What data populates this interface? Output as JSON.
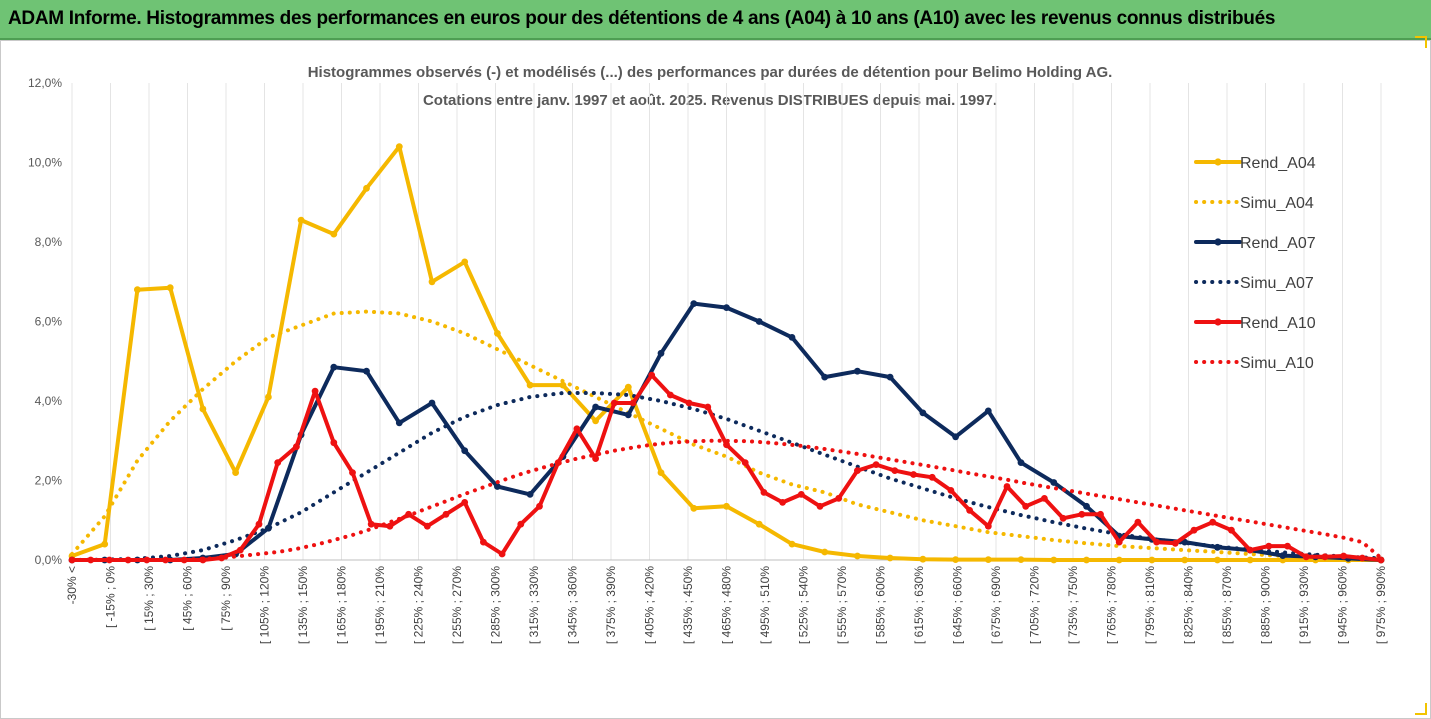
{
  "header": {
    "title": "ADAM Informe. Histogrammes des performances en euros pour des détentions de 4 ans (A04) à 10 ans (A10) avec les revenus connus distribués"
  },
  "colors": {
    "banner": "#6fc374",
    "a04": "#f5b800",
    "a07": "#0d2a5c",
    "a10": "#ee1111"
  },
  "chart_data": {
    "type": "line",
    "title": "Histogrammes observés (-) et modélisés (...) des performances par durées de détention pour Belimo Holding AG.",
    "subtitle": "Cotations entre janv. 1997 et août. 2025. Revenus DISTRIBUES depuis mai. 1997.",
    "xlabel": "",
    "ylabel": "",
    "ylim": [
      0,
      0.12
    ],
    "y_ticks": [
      "0,0%",
      "2,0%",
      "4,0%",
      "6,0%",
      "8,0%",
      "10,0%",
      "12,0%"
    ],
    "grid": "vertical",
    "legend_position": "right",
    "x_tick_labels": [
      "-30% <",
      "[ -15% ; 0%",
      "[ 15% ; 30%",
      "[ 45% ; 60%",
      "[ 75% ; 90%",
      "[ 105% ; 120%",
      "[ 135% ; 150%",
      "[ 165% ; 180%",
      "[ 195% ; 210%",
      "[ 225% ; 240%",
      "[ 255% ; 270%",
      "[ 285% ; 300%",
      "[ 315% ; 330%",
      "[ 345% ; 360%",
      "[ 375% ; 390%",
      "[ 405% ; 420%",
      "[ 435% ; 450%",
      "[ 465% ; 480%",
      "[ 495% ; 510%",
      "[ 525% ; 540%",
      "[ 555% ; 570%",
      "[ 585% ; 600%",
      "[ 615% ; 630%",
      "[ 645% ; 660%",
      "[ 675% ; 690%",
      "[ 705% ; 720%",
      "[ 735% ; 750%",
      "[ 765% ; 780%",
      "[ 795% ; 810%",
      "[ 825% ; 840%",
      "[ 855% ; 870%",
      "[ 885% ; 900%",
      "[ 915% ; 930%",
      "[ 945% ; 960%",
      "[ 975% ; 990%"
    ],
    "series": [
      {
        "name": "Rend_A04",
        "style": "solid",
        "color": "#f5b800",
        "values": [
          0.001,
          0.004,
          0.068,
          0.0685,
          0.038,
          0.022,
          0.041,
          0.0855,
          0.082,
          0.0935,
          0.104,
          0.07,
          0.075,
          0.057,
          0.044,
          0.044,
          0.035,
          0.0435,
          0.022,
          0.013,
          0.0135,
          0.009,
          0.004,
          0.002,
          0.001,
          0.0005,
          0.0002,
          0.0001,
          0.0001,
          0.0001,
          0,
          0,
          0,
          0,
          0,
          0,
          0,
          0,
          0,
          0,
          0
        ]
      },
      {
        "name": "Simu_A04",
        "style": "dotted",
        "color": "#f5b800",
        "values": [
          0.0015,
          0.011,
          0.025,
          0.035,
          0.043,
          0.05,
          0.056,
          0.059,
          0.062,
          0.0625,
          0.062,
          0.06,
          0.057,
          0.053,
          0.049,
          0.045,
          0.041,
          0.037,
          0.033,
          0.029,
          0.026,
          0.022,
          0.019,
          0.017,
          0.014,
          0.012,
          0.01,
          0.0085,
          0.007,
          0.006,
          0.005,
          0.0042,
          0.0035,
          0.003,
          0.0025,
          0.002,
          0.0015,
          0.001,
          0.0008,
          0.0005,
          0.0003
        ]
      },
      {
        "name": "Rend_A07",
        "style": "solid",
        "color": "#0d2a5c",
        "values": [
          0,
          0,
          0,
          0,
          0.0005,
          0.0015,
          0.008,
          0.0315,
          0.0485,
          0.0475,
          0.0345,
          0.0395,
          0.0275,
          0.0185,
          0.0165,
          0.026,
          0.0385,
          0.0365,
          0.052,
          0.0645,
          0.0635,
          0.06,
          0.056,
          0.046,
          0.0475,
          0.046,
          0.037,
          0.031,
          0.0375,
          0.0245,
          0.0195,
          0.0135,
          0.006,
          0.0052,
          0.0045,
          0.0032,
          0.0025,
          0.0011,
          0.0008,
          0.0004,
          0
        ]
      },
      {
        "name": "Simu_A07",
        "style": "dotted",
        "color": "#0d2a5c",
        "values": [
          0,
          0.0001,
          0.0003,
          0.001,
          0.0025,
          0.005,
          0.008,
          0.012,
          0.017,
          0.022,
          0.027,
          0.032,
          0.036,
          0.039,
          0.041,
          0.042,
          0.042,
          0.0415,
          0.04,
          0.038,
          0.0355,
          0.0325,
          0.0295,
          0.0265,
          0.0235,
          0.0205,
          0.018,
          0.0155,
          0.0133,
          0.0113,
          0.0095,
          0.0079,
          0.0065,
          0.0053,
          0.0043,
          0.0034,
          0.0026,
          0.0019,
          0.0013,
          0.0008,
          0.0004
        ]
      },
      {
        "name": "Rend_A10",
        "style": "solid",
        "color": "#ee1111",
        "values": [
          0,
          0,
          0,
          0,
          0,
          0,
          0,
          0,
          0.0005,
          0.0025,
          0.009,
          0.0245,
          0.0285,
          0.0425,
          0.0295,
          0.022,
          0.009,
          0.0085,
          0.0115,
          0.0085,
          0.0115,
          0.0145,
          0.0045,
          0.0015,
          0.009,
          0.0135,
          0.0245,
          0.033,
          0.0255,
          0.0395,
          0.0395,
          0.0465,
          0.0415,
          0.0395,
          0.0385,
          0.029,
          0.0245,
          0.017,
          0.0145,
          0.0165,
          0.0135,
          0.0155,
          0.0225,
          0.024,
          0.0225,
          0.0215,
          0.0208,
          0.0175,
          0.0125,
          0.0085,
          0.0185,
          0.0135,
          0.0155,
          0.0105,
          0.0115,
          0.0115,
          0.0045,
          0.0095,
          0.0045,
          0.0042,
          0.0075,
          0.0095,
          0.0075,
          0.0025,
          0.0035,
          0.0035,
          0.0008,
          0.0008,
          0.001,
          0.0005,
          0
        ]
      },
      {
        "name": "Simu_A10",
        "style": "dotted",
        "color": "#ee1111",
        "values": [
          0,
          0,
          0,
          0,
          0,
          0,
          0.0001,
          0.0003,
          0.0005,
          0.001,
          0.0015,
          0.002,
          0.0028,
          0.0038,
          0.005,
          0.0063,
          0.0078,
          0.0095,
          0.0112,
          0.013,
          0.0148,
          0.0166,
          0.0183,
          0.02,
          0.0216,
          0.023,
          0.0243,
          0.0255,
          0.0265,
          0.0275,
          0.0283,
          0.029,
          0.0295,
          0.0298,
          0.03,
          0.03,
          0.0299,
          0.0296,
          0.0292,
          0.0287,
          0.0281,
          0.0274,
          0.0267,
          0.0259,
          0.0251,
          0.0243,
          0.0235,
          0.0227,
          0.0218,
          0.021,
          0.0202,
          0.0193,
          0.0185,
          0.0177,
          0.0169,
          0.0161,
          0.0153,
          0.0145,
          0.0137,
          0.0129,
          0.0121,
          0.0113,
          0.0105,
          0.0097,
          0.0089,
          0.0081,
          0.0073,
          0.0065,
          0.0056,
          0.0045,
          0.0005
        ]
      }
    ]
  }
}
